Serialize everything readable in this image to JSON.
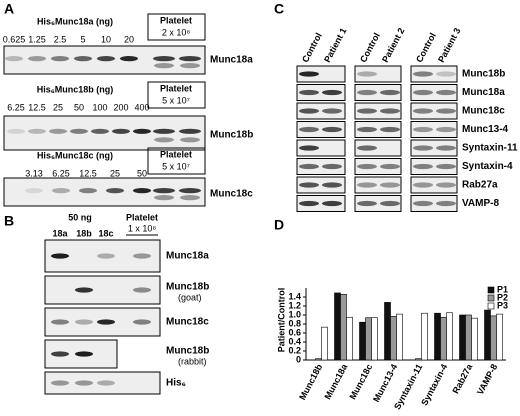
{
  "panels": {
    "A": {
      "label": "A",
      "blots": [
        {
          "title": "His₆Munc18a (ng)",
          "lanes": [
            "0.625",
            "1.25",
            "2.5",
            "5",
            "10",
            "20"
          ],
          "platelet": "Platelet",
          "platelet_amount": "2 x 10⁸",
          "protein": "Munc18a"
        },
        {
          "title": "His₆Munc18b (ng)",
          "lanes": [
            "6.25",
            "12.5",
            "25",
            "50",
            "100",
            "200",
            "400"
          ],
          "platelet": "Platelet",
          "platelet_amount": "5 x 10⁷",
          "protein": "Munc18b"
        },
        {
          "title": "His₆Munc18c (ng)",
          "lanes": [
            "3.13",
            "6.25",
            "12.5",
            "25",
            "50"
          ],
          "platelet": "Platelet",
          "platelet_amount": "5 x 10⁷",
          "protein": "Munc18c"
        }
      ]
    },
    "B": {
      "label": "B",
      "amount": "50 ng",
      "lanes": [
        "18a",
        "18b",
        "18c"
      ],
      "platelet": "Platelet",
      "platelet_amount": "1 x 10⁸",
      "rows": [
        {
          "name": "Munc18a"
        },
        {
          "name": "Munc18b",
          "note": "(goat)"
        },
        {
          "name": "Munc18c"
        },
        {
          "name": "Munc18b",
          "note": "(rabbit)"
        },
        {
          "name": "His₆"
        }
      ]
    },
    "C": {
      "label": "C",
      "columns": [
        "Control",
        "Patient 1",
        "Control",
        "Patient 2",
        "Control",
        "Patient 3"
      ],
      "rows": [
        "Munc18b",
        "Munc18a",
        "Munc18c",
        "Munc13-4",
        "Syntaxin-11",
        "Syntaxin-4",
        "Rab27a",
        "VAMP-8"
      ]
    },
    "D": {
      "label": "D"
    }
  },
  "chart_data": {
    "type": "bar",
    "y_label": "Patient/Control",
    "categories": [
      "Munc18b",
      "Munc18a",
      "Munc18c",
      "Munc13-4",
      "Syntaxin-11",
      "Syntaxin-4",
      "Rab27a",
      "VAMP-8"
    ],
    "series": [
      {
        "name": "P1",
        "color": "#111111",
        "values": [
          0,
          1.49,
          0.84,
          1.28,
          0,
          1.04,
          1.0,
          1.11
        ]
      },
      {
        "name": "P2",
        "color": "#999999",
        "values": [
          0.03,
          1.46,
          0.94,
          0.97,
          0.03,
          0.95,
          1.0,
          0.98
        ]
      },
      {
        "name": "P3",
        "color": "#ffffff",
        "values": [
          0.73,
          0.95,
          0.94,
          1.02,
          1.04,
          1.05,
          0.93,
          1.02
        ]
      }
    ],
    "ylim": [
      0,
      1.6
    ],
    "yticks": [
      0,
      0.2,
      0.4,
      0.6,
      0.8,
      {
        "value": 1,
        "label": "1.0"
      },
      1.2,
      1.4
    ],
    "legend": "upper right"
  }
}
